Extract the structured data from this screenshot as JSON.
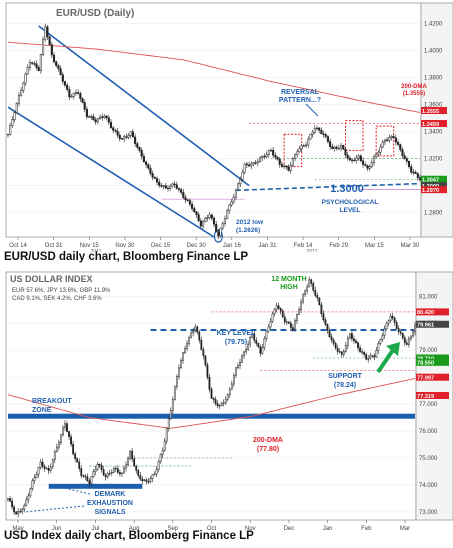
{
  "charts": [
    {
      "title": "EUR/USD (Daily)",
      "caption": "EUR/USD daily chart, Bloomberg Finance LP",
      "y_ticks": [
        "1.4200",
        "1.4000",
        "1.3800",
        "1.3600",
        "1.3400",
        "1.3200",
        "1.3000",
        "1.2800"
      ],
      "x_ticks": [
        "Oct 14",
        "Oct 31",
        "Nov 15",
        "Nov 30",
        "Dec 15",
        "Dec 30",
        "Jan 16",
        "Jan 31",
        "Feb 14",
        "Feb 29",
        "Mar 15",
        "Mar 30"
      ],
      "years": [
        "2011",
        "2012"
      ],
      "price_tags": [
        {
          "label": "1.3555",
          "value": 1.3555,
          "color": "#e0202a"
        },
        {
          "label": "1.3459",
          "value": 1.3459,
          "color": "#e0202a"
        },
        {
          "label": "1.3047",
          "value": 1.3047,
          "color": "#1a9a1a"
        },
        {
          "label": "1.3000",
          "value": 1.3,
          "color": "#444444"
        },
        {
          "label": "1.2970",
          "value": 1.297,
          "color": "#e0202a"
        }
      ],
      "annotations": {
        "reversal": [
          "REVERSAL",
          "PATTERN...?"
        ],
        "dma": [
          "200-DMA",
          "(1.3555)"
        ],
        "psych_value": "1.3000",
        "psych": [
          "PSYCHOLOGICAL",
          "LEVEL"
        ],
        "low": [
          "2012 low",
          "(1.2626)"
        ]
      },
      "chart_data": {
        "type": "candlestick",
        "title": "EUR/USD (Daily)",
        "ylim": [
          1.262,
          1.435
        ],
        "x_range": [
          "Oct 4 2011",
          "Apr 10 2012"
        ],
        "closes": [
          [
            0,
            1.338
          ],
          [
            5,
            1.366
          ],
          [
            10,
            1.392
          ],
          [
            14,
            1.386
          ],
          [
            17,
            1.418
          ],
          [
            20,
            1.396
          ],
          [
            24,
            1.382
          ],
          [
            28,
            1.366
          ],
          [
            32,
            1.369
          ],
          [
            36,
            1.352
          ],
          [
            40,
            1.348
          ],
          [
            44,
            1.352
          ],
          [
            48,
            1.341
          ],
          [
            52,
            1.334
          ],
          [
            56,
            1.339
          ],
          [
            60,
            1.325
          ],
          [
            64,
            1.312
          ],
          [
            68,
            1.302
          ],
          [
            72,
            1.298
          ],
          [
            76,
            1.301
          ],
          [
            80,
            1.292
          ],
          [
            84,
            1.284
          ],
          [
            88,
            1.271
          ],
          [
            92,
            1.279
          ],
          [
            96,
            1.263
          ],
          [
            100,
            1.281
          ],
          [
            104,
            1.296
          ],
          [
            108,
            1.315
          ],
          [
            112,
            1.316
          ],
          [
            116,
            1.321
          ],
          [
            120,
            1.326
          ],
          [
            124,
            1.316
          ],
          [
            128,
            1.312
          ],
          [
            132,
            1.326
          ],
          [
            136,
            1.331
          ],
          [
            140,
            1.343
          ],
          [
            144,
            1.338
          ],
          [
            148,
            1.327
          ],
          [
            152,
            1.329
          ],
          [
            156,
            1.318
          ],
          [
            160,
            1.321
          ],
          [
            164,
            1.312
          ],
          [
            168,
            1.323
          ],
          [
            172,
            1.334
          ],
          [
            176,
            1.336
          ],
          [
            180,
            1.323
          ],
          [
            184,
            1.311
          ],
          [
            188,
            1.305
          ]
        ],
        "ma_200": [
          [
            0,
            1.406
          ],
          [
            40,
            1.401
          ],
          [
            80,
            1.393
          ],
          [
            120,
            1.377
          ],
          [
            160,
            1.363
          ],
          [
            188,
            1.354
          ]
        ],
        "key_levels": {
          "high_2012": 1.3459,
          "ma_200": 1.3555,
          "last": 1.3047,
          "psychological": 1.3,
          "low_2012": 1.2626
        }
      }
    },
    {
      "title": "US DOLLAR INDEX",
      "caption": "USD Index daily chart, Bloomberg Finance LP",
      "legend": [
        "EUR 57.6%, JPY 13.6%, GBP 11.9%",
        "CAD 9.1%, SEK 4.2%, CHF 3.6%"
      ],
      "y_ticks": [
        "81.000",
        "80.000",
        "79.000",
        "78.000",
        "77.000",
        "76.000",
        "75.000",
        "74.000",
        "73.000"
      ],
      "x_ticks": [
        "May",
        "Jun",
        "Jul",
        "Aug",
        "Sep",
        "Oct",
        "Nov",
        "Dec",
        "Jan",
        "Feb",
        "Mar"
      ],
      "years": [
        "2011",
        "2012"
      ],
      "price_tags": [
        {
          "label": "80.420",
          "value": 80.42,
          "color": "#e0202a"
        },
        {
          "label": "79.961",
          "value": 79.961,
          "color": "#444444"
        },
        {
          "label": "78.710",
          "value": 78.71,
          "color": "#1a9a1a"
        },
        {
          "label": "78.550",
          "value": 78.55,
          "color": "#1a9a1a"
        },
        {
          "label": "77.997",
          "value": 77.997,
          "color": "#e0202a"
        },
        {
          "label": "77.319",
          "value": 77.319,
          "color": "#e0202a"
        }
      ],
      "annotations": {
        "high": [
          "12 MONTH",
          "HIGH"
        ],
        "key": [
          "KEY LEVEL",
          "(79.75)"
        ],
        "support": [
          "SUPPORT",
          "(78.24)"
        ],
        "breakout": [
          "BREAKOUT",
          "ZONE"
        ],
        "dma": [
          "200-DMA",
          "(77.80)"
        ],
        "demark": [
          "DEMARK",
          "EXHAUSTION",
          "SIGNALS"
        ]
      },
      "chart_data": {
        "type": "candlestick",
        "title": "US DOLLAR INDEX",
        "ylim": [
          72.7,
          81.9
        ],
        "x_range": [
          "Apr 25 2011",
          "Apr 5 2012"
        ],
        "closes": [
          [
            0,
            73.5
          ],
          [
            4,
            72.9
          ],
          [
            8,
            73.2
          ],
          [
            12,
            74.1
          ],
          [
            16,
            74.8
          ],
          [
            20,
            74.5
          ],
          [
            24,
            75.4
          ],
          [
            28,
            76.3
          ],
          [
            32,
            75.2
          ],
          [
            36,
            74.4
          ],
          [
            40,
            74.1
          ],
          [
            44,
            74.8
          ],
          [
            48,
            74.3
          ],
          [
            52,
            74.6
          ],
          [
            56,
            74.4
          ],
          [
            60,
            75.2
          ],
          [
            64,
            74.3
          ],
          [
            68,
            74.1
          ],
          [
            72,
            74.4
          ],
          [
            76,
            75.3
          ],
          [
            80,
            76.8
          ],
          [
            84,
            78.4
          ],
          [
            88,
            79.3
          ],
          [
            92,
            79.9
          ],
          [
            96,
            78.8
          ],
          [
            100,
            77.2
          ],
          [
            104,
            76.9
          ],
          [
            108,
            77.3
          ],
          [
            112,
            78.3
          ],
          [
            116,
            78.9
          ],
          [
            120,
            79.6
          ],
          [
            124,
            78.9
          ],
          [
            128,
            79.9
          ],
          [
            132,
            80.7
          ],
          [
            136,
            80.1
          ],
          [
            140,
            79.8
          ],
          [
            144,
            80.8
          ],
          [
            148,
            81.6
          ],
          [
            152,
            80.9
          ],
          [
            156,
            79.9
          ],
          [
            160,
            79.2
          ],
          [
            164,
            78.8
          ],
          [
            168,
            79.6
          ],
          [
            172,
            79.1
          ],
          [
            176,
            78.7
          ],
          [
            180,
            78.8
          ],
          [
            184,
            79.6
          ],
          [
            188,
            80.3
          ],
          [
            192,
            79.7
          ],
          [
            196,
            79.2
          ],
          [
            200,
            79.9
          ]
        ],
        "ma_200": [
          [
            0,
            77.35
          ],
          [
            40,
            76.5
          ],
          [
            80,
            76.1
          ],
          [
            120,
            76.55
          ],
          [
            160,
            77.3
          ],
          [
            200,
            77.95
          ]
        ],
        "key_levels": {
          "key_level": 79.75,
          "support": 78.24,
          "ma_200": 77.8,
          "last": 79.961
        }
      }
    }
  ]
}
